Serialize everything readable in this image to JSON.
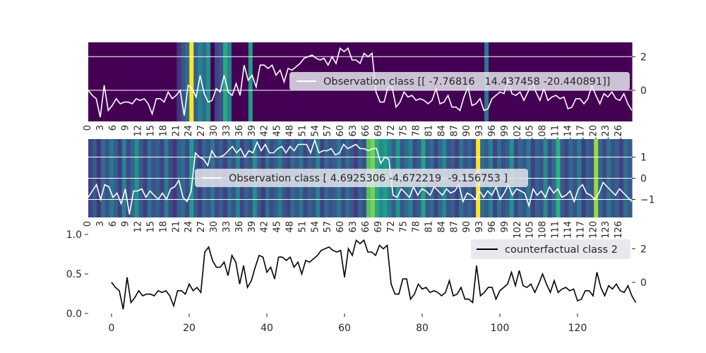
{
  "figure": {
    "background": "#ffffff",
    "axis_text_color": "#262626",
    "heatmap_colormap": "viridis",
    "gridline_color": "#ffffff",
    "legend_bg": "#e4e4ec"
  },
  "chart_data": [
    {
      "type": "heatmap",
      "subtype": "heatmap with line overlay",
      "legend": "Observation class [[ -7.76816   14.437458 -20.440891]]",
      "legend_position": "right",
      "line_color": "#ffffff",
      "y_ticks_right": [
        "2",
        "0"
      ],
      "y_tick_values": [
        2,
        0
      ],
      "ylim": [
        -1.85,
        2.85
      ],
      "xlim": [
        0,
        129
      ],
      "x_tick_labels": [
        "0",
        "3",
        "6",
        "9",
        "12",
        "15",
        "18",
        "21",
        "24",
        "27",
        "30",
        "33",
        "36",
        "39",
        "42",
        "45",
        "48",
        "51",
        "54",
        "57",
        "60",
        "63",
        "66",
        "69",
        "72",
        "75",
        "78",
        "81",
        "84",
        "87",
        "90",
        "93",
        "96",
        "99",
        "102",
        "105",
        "108",
        "111",
        "114",
        "117",
        "120",
        "123",
        "126"
      ],
      "heat_values": [
        0,
        0,
        0,
        0,
        0,
        0,
        0,
        0,
        0,
        0,
        0,
        0,
        0,
        0,
        0,
        0,
        0,
        0,
        0,
        0,
        0,
        0,
        0,
        0,
        0,
        0,
        0,
        0,
        0,
        0,
        0,
        0,
        0,
        0,
        0,
        0,
        0,
        0,
        0,
        0,
        0,
        0,
        0,
        0,
        0,
        0,
        0,
        0,
        0,
        0,
        0,
        0,
        0,
        0,
        0,
        0,
        0,
        0,
        0,
        0,
        0,
        0,
        0,
        0,
        0,
        0,
        0,
        0,
        0,
        0,
        0,
        0,
        0,
        0,
        0,
        0,
        0,
        0,
        0,
        0,
        0,
        0,
        0,
        0,
        0,
        0,
        0,
        0,
        0,
        0,
        0,
        0,
        0,
        0,
        0,
        0,
        0,
        0,
        0,
        0,
        0,
        0,
        0,
        0,
        0,
        0,
        0,
        0,
        0,
        0,
        0,
        0,
        0,
        0,
        0,
        0,
        0,
        0,
        0,
        0,
        0,
        0,
        0,
        0,
        0,
        0,
        0,
        0,
        0
      ],
      "heat_highlights": [
        [
          21,
          0.15
        ],
        [
          22,
          0.25
        ],
        [
          23,
          0.35
        ],
        [
          24,
          1.0
        ],
        [
          25,
          0.3
        ],
        [
          26,
          0.45
        ],
        [
          27,
          0.35
        ],
        [
          28,
          0.5
        ],
        [
          30,
          0.2
        ],
        [
          31,
          0.25
        ],
        [
          32,
          0.6
        ],
        [
          33,
          0.45
        ],
        [
          38,
          0.55
        ],
        [
          94,
          0.4
        ]
      ],
      "series": [
        {
          "name": "Observation class [[ -7.76816   14.437458 -20.440891]]",
          "values": [
            0,
            -0.3,
            -0.5,
            -1.6,
            0.3,
            -1.2,
            -0.9,
            -0.5,
            -0.8,
            -0.7,
            -0.7,
            -0.8,
            -0.5,
            -0.6,
            -0.5,
            -0.8,
            -1.4,
            -0.5,
            -0.5,
            -0.7,
            -0.1,
            -0.5,
            -0.3,
            0,
            -1.5,
            0.3,
            0.1,
            -0.4,
            0.9,
            -0.2,
            -0.7,
            -0.6,
            0.1,
            -0.1,
            0.9,
            -0.1,
            -0.3,
            0.4,
            -0.3,
            1.5,
            0.6,
            0.9,
            0.2,
            1.5,
            1.5,
            1.3,
            1.5,
            0.9,
            1.2,
            0.5,
            1.3,
            1.2,
            1.4,
            1.6,
            1.9,
            2.0,
            2.1,
            1.9,
            1.8,
            1.9,
            1.5,
            2.0,
            1.6,
            2.5,
            2.3,
            2.5,
            1.8,
            1.8,
            1.6,
            2.2,
            2.0,
            2.2,
            -0.1,
            -0.7,
            -0.7,
            0.2,
            0.2,
            -1.0,
            -0.7,
            -0.1,
            -0.4,
            -0.3,
            -0.6,
            -0.5,
            -0.6,
            -0.8,
            -0.6,
            0.1,
            -0.8,
            -0.7,
            -0.3,
            -1.0,
            -1.0,
            -1.2,
            -0.4,
            0.2,
            -0.9,
            -0.8,
            -0.5,
            -1.2,
            -1.1,
            -0.5,
            -0.3,
            -0.1,
            -0.2,
            0.6,
            -0.2,
            -0.3,
            -0.1,
            -0.6,
            -0.1,
            0.5,
            -0.1,
            -0.6,
            0.1,
            -0.6,
            -0.4,
            -0.3,
            -0.5,
            -0.4,
            -1.1,
            -1.0,
            -0.5,
            -0.5,
            -0.8,
            -0.5,
            0.3,
            -0.3,
            -0.8,
            -0.2,
            -0.4,
            -0.1,
            -0.5,
            -0.6,
            -0.2,
            -0.8,
            -1.2
          ]
        }
      ]
    },
    {
      "type": "heatmap",
      "subtype": "heatmap with line overlay",
      "legend": "Observation class [ 4.6925306 -4.672219  -9.156753 ]",
      "legend_position": "center",
      "line_color": "#ffffff",
      "y_ticks_right": [
        "1",
        "0",
        "−1"
      ],
      "y_tick_values": [
        1,
        0,
        -1
      ],
      "ylim": [
        -1.85,
        1.85
      ],
      "xlim": [
        0,
        129
      ],
      "x_tick_labels": [
        "0",
        "3",
        "6",
        "9",
        "12",
        "15",
        "18",
        "21",
        "24",
        "27",
        "30",
        "33",
        "36",
        "39",
        "42",
        "45",
        "48",
        "51",
        "54",
        "57",
        "60",
        "63",
        "66",
        "69",
        "72",
        "75",
        "78",
        "81",
        "84",
        "87",
        "90",
        "93",
        "96",
        "99",
        "102",
        "105",
        "108",
        "111",
        "114",
        "117",
        "120",
        "123",
        "126"
      ],
      "heat_values": [
        0.2,
        0.28,
        0.15,
        0.35,
        0.25,
        0.4,
        0.3,
        0.18,
        0.45,
        0.22,
        0.33,
        0.5,
        0.28,
        0.19,
        0.37,
        0.26,
        0.3,
        0.2,
        0.42,
        0.24,
        0.15,
        0.3,
        0.35,
        0.22,
        0.55,
        0.28,
        0.18,
        0.33,
        0.25,
        0.4,
        0.22,
        0.3,
        0.19,
        0.35,
        0.26,
        0.45,
        0.2,
        0.31,
        0.24,
        0.5,
        0.28,
        0.17,
        0.36,
        0.23,
        0.3,
        0.42,
        0.25,
        0.2,
        0.34,
        0.27,
        0.38,
        0.21,
        0.3,
        0.26,
        0.44,
        0.19,
        0.33,
        0.25,
        0.29,
        0.4,
        0.22,
        0.35,
        0.27,
        0.18,
        0.31,
        0.24,
        0.72,
        0.8,
        0.6,
        0.48,
        0.55,
        0.42,
        0.3,
        0.52,
        0.26,
        0.35,
        0.44,
        0.22,
        0.3,
        0.58,
        0.28,
        0.36,
        0.2,
        0.33,
        0.47,
        0.25,
        0.3,
        0.19,
        0.38,
        0.26,
        0.31,
        0.22,
        1.0,
        0.34,
        0.28,
        0.45,
        0.2,
        0.36,
        0.24,
        0.3,
        0.5,
        0.22,
        0.33,
        0.27,
        0.4,
        0.19,
        0.31,
        0.26,
        0.48,
        0.22,
        0.35,
        0.62,
        0.28,
        0.2,
        0.34,
        0.25,
        0.41,
        0.18,
        0.3,
        0.26,
        0.85,
        0.33,
        0.22,
        0.38,
        0.25,
        0.3,
        0.19,
        0.36,
        0.28
      ],
      "series": [
        {
          "name": "Observation class [ 4.6925306 -4.672219  -9.156753 ]",
          "values": [
            -0.9,
            -0.6,
            -0.3,
            -1.0,
            -0.3,
            -0.4,
            -0.9,
            -0.7,
            -1.2,
            -0.5,
            -1.7,
            -0.6,
            -0.6,
            -0.5,
            -0.9,
            -0.6,
            -0.8,
            -1.0,
            -0.7,
            -1.0,
            -0.5,
            -0.4,
            -0.1,
            -0.9,
            -1.1,
            -0.6,
            1.2,
            1.0,
            0.9,
            0.6,
            1.3,
            1.0,
            1.0,
            1.1,
            1.3,
            1.5,
            1.2,
            1.4,
            1.0,
            1.3,
            1.2,
            1.7,
            1.3,
            1.6,
            1.2,
            1.2,
            1.4,
            1.5,
            1.2,
            1.5,
            1.3,
            1.6,
            1.6,
            1.6,
            1.2,
            1.8,
            1.2,
            1.3,
            1.3,
            1.4,
            1.1,
            1.2,
            1.6,
            1.4,
            1.5,
            1.6,
            1.4,
            1.4,
            1.3,
            1.4,
            1.4,
            0.7,
            1.0,
            0.9,
            -0.8,
            -0.9,
            -0.5,
            -0.7,
            -0.9,
            -0.4,
            -0.8,
            -0.5,
            -0.6,
            -0.8,
            -0.4,
            -0.6,
            -0.8,
            -0.5,
            -0.7,
            -0.6,
            -0.3,
            -1.1,
            -0.7,
            -0.8,
            -1.0,
            -0.6,
            -0.9,
            -0.6,
            -0.8,
            -0.4,
            -1.0,
            -0.7,
            -0.3,
            -0.8,
            -0.5,
            -0.6,
            -0.7,
            -1.3,
            -0.5,
            -0.8,
            -0.6,
            -0.9,
            -0.4,
            -0.7,
            -0.5,
            -0.9,
            -0.8,
            -0.6,
            -1.1,
            -0.5,
            -0.3,
            -0.7,
            -0.8,
            -1.0,
            -0.7,
            -0.2,
            -0.4,
            -0.6,
            -0.8,
            -0.5,
            -0.7,
            -0.9,
            -1.1
          ]
        }
      ]
    },
    {
      "type": "line",
      "legend": "counterfactual class 2",
      "legend_position": "upper right",
      "line_color": "#000000",
      "y_ticks_left": [
        "1.0",
        "0.5",
        "0.0"
      ],
      "y_tick_values_left": [
        1.0,
        0.5,
        0.0
      ],
      "ylim_left": [
        0,
        1
      ],
      "y_ticks_right": [
        "2",
        "0"
      ],
      "y_tick_values_right": [
        2,
        0
      ],
      "ylim_right": [
        -1.85,
        2.85
      ],
      "x_ticks": [
        "0",
        "20",
        "40",
        "60",
        "80",
        "100",
        "120"
      ],
      "x_tick_values": [
        0,
        20,
        40,
        60,
        80,
        100,
        120
      ],
      "xlim": [
        -6,
        134
      ],
      "series": [
        {
          "name": "counterfactual class 2",
          "values": [
            0,
            -0.3,
            -0.5,
            -1.6,
            0.3,
            -1.2,
            -0.9,
            -0.5,
            -0.8,
            -0.7,
            -0.7,
            -0.8,
            -0.5,
            -0.6,
            -0.5,
            -0.8,
            -1.4,
            -0.5,
            -0.5,
            -0.7,
            -0.1,
            -0.5,
            -0.3,
            -0.6,
            1.8,
            2.1,
            1.3,
            0.9,
            0.9,
            1.2,
            0.4,
            1.6,
            1.2,
            -0.1,
            1.0,
            -0.3,
            0.1,
            0.9,
            1.6,
            1.5,
            0.6,
            0.9,
            0.2,
            1.5,
            1.5,
            1.3,
            1.5,
            0.9,
            1.2,
            0.5,
            1.3,
            1.2,
            1.4,
            1.6,
            1.9,
            2.0,
            2.1,
            1.9,
            1.8,
            1.9,
            0.3,
            2.0,
            1.6,
            2.5,
            2.3,
            2.5,
            1.8,
            1.8,
            1.6,
            2.2,
            2.0,
            2.2,
            -0.1,
            -0.7,
            -0.7,
            0.2,
            0.2,
            -1.0,
            -0.7,
            -0.1,
            -0.4,
            -0.3,
            -0.6,
            -0.5,
            -0.6,
            -0.8,
            -0.6,
            0.1,
            -0.8,
            -0.7,
            -0.3,
            -1.0,
            -1.0,
            -1.2,
            1.0,
            -0.8,
            -0.6,
            -0.3,
            -0.3,
            -1.0,
            -0.5,
            -0.3,
            -0.1,
            0.6,
            -0.2,
            0.7,
            -0.2,
            -0.3,
            -0.1,
            -0.6,
            -0.1,
            0.5,
            -0.1,
            -0.6,
            0.1,
            -0.6,
            -0.4,
            -0.3,
            -0.5,
            -0.4,
            -1.1,
            -1.0,
            -0.5,
            -0.5,
            -0.8,
            0.6,
            -0.3,
            -0.8,
            -0.2,
            -0.4,
            -0.1,
            -0.5,
            -0.6,
            -0.2,
            -0.8,
            -1.2
          ]
        }
      ]
    }
  ]
}
